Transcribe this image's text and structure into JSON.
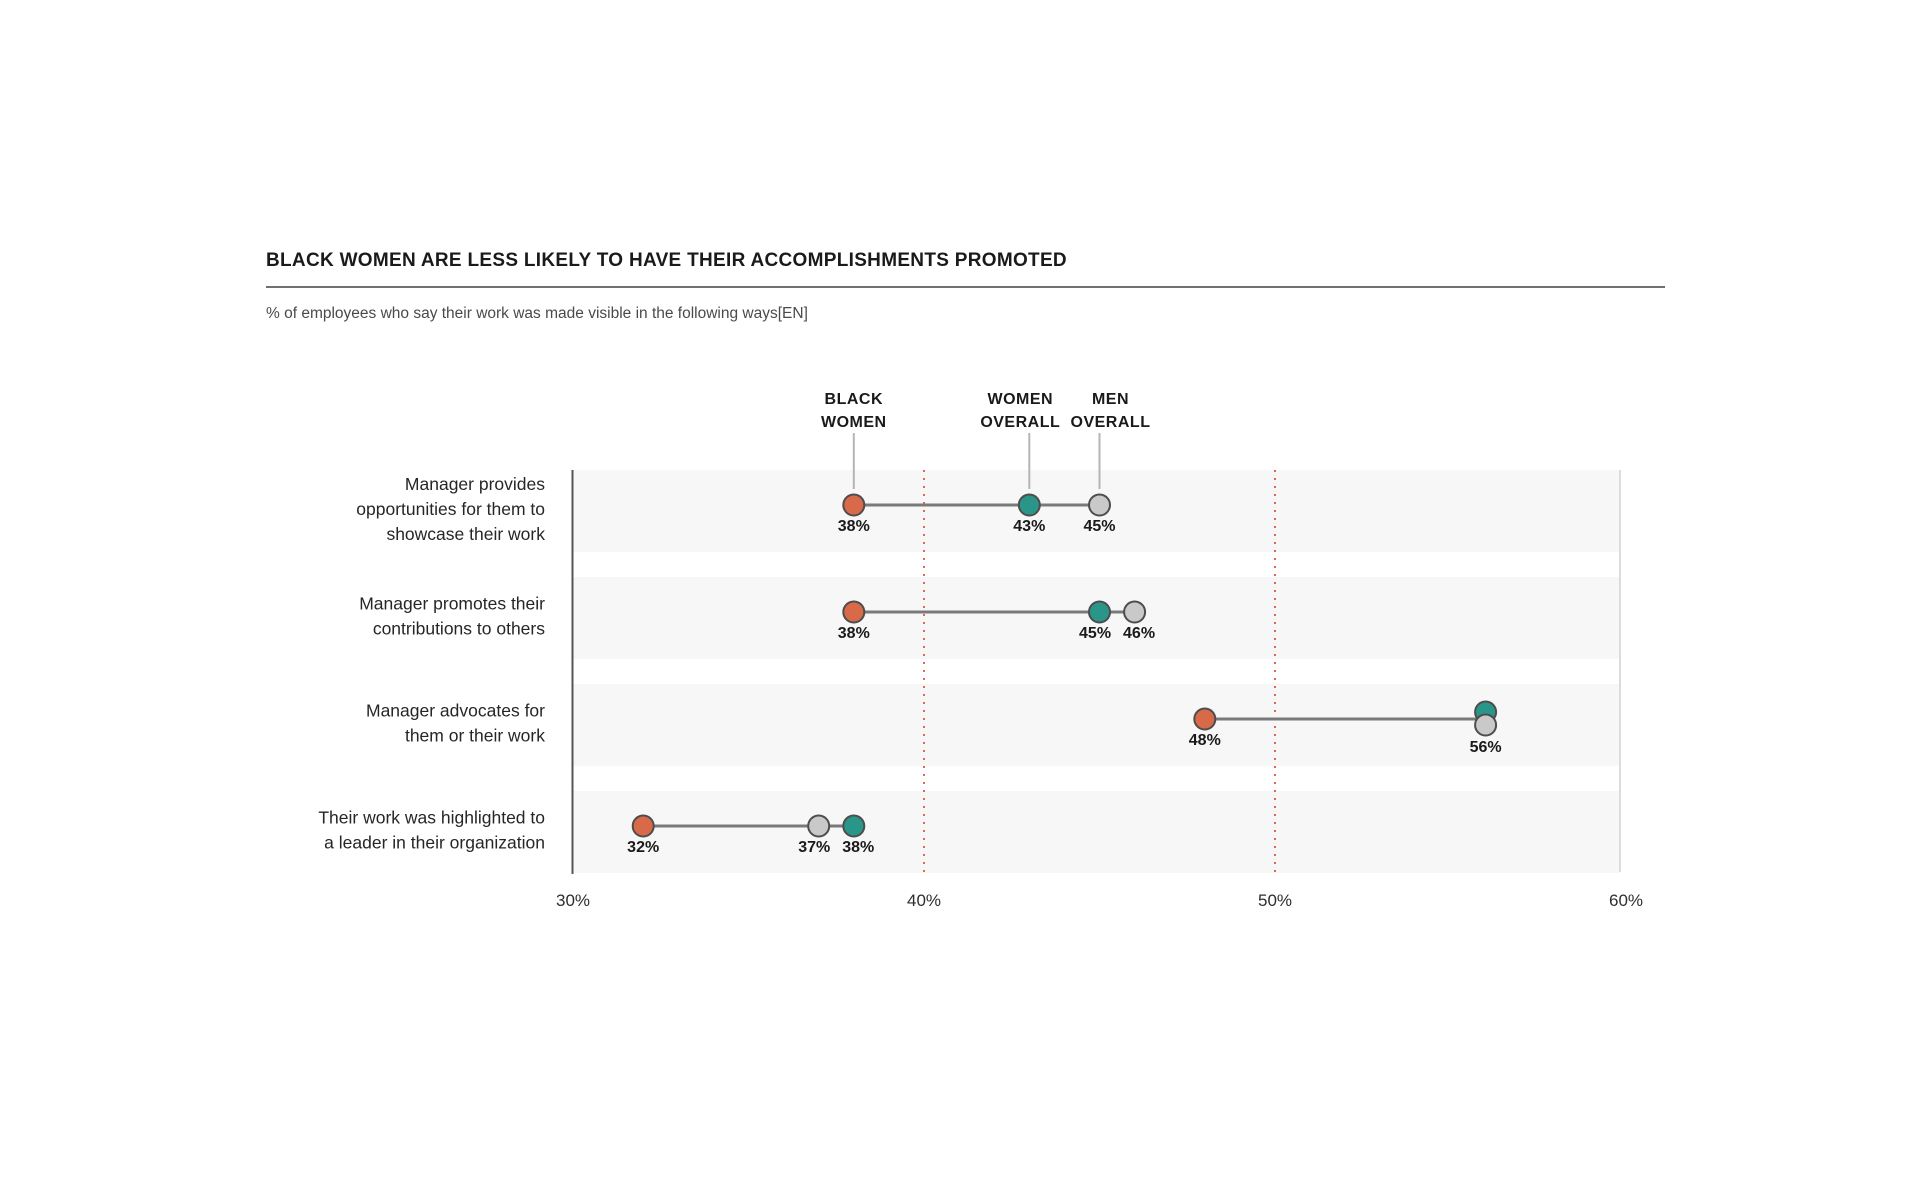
{
  "chart_data": {
    "type": "dumbbell",
    "title": "BLACK WOMEN ARE LESS LIKELY TO HAVE THEIR ACCOMPLISHMENTS PROMOTED",
    "subtitle": "% of employees who say their work was made visible in the following ways[EN]",
    "x_axis": {
      "min": 30,
      "max": 60,
      "tick_values": [
        30,
        40,
        50,
        60
      ],
      "tick_labels": [
        "30%",
        "40%",
        "50%",
        "60%"
      ],
      "unit": "%"
    },
    "gridlines": {
      "values": [
        40,
        50
      ],
      "style": "dotted",
      "color": "#e0694a"
    },
    "legend_position": "top",
    "categories": [
      "Manager provides opportunities for them to showcase their work",
      "Manager promotes their contributions to others",
      "Manager advocates for them or their work",
      "Their work was highlighted to a leader in their organization"
    ],
    "category_label_lines": [
      [
        "Manager provides",
        "opportunities for them to",
        "showcase their work"
      ],
      [
        "Manager promotes their",
        "contributions to others"
      ],
      [
        "Manager advocates for",
        "them or their work"
      ],
      [
        "Their work was highlighted to",
        "a leader in their organization"
      ]
    ],
    "series": [
      {
        "id": "black_women",
        "name": "BLACK WOMEN",
        "label_lines": [
          "BLACK",
          "WOMEN"
        ],
        "color": "#d96a49",
        "values": [
          38,
          38,
          48,
          32
        ]
      },
      {
        "id": "women_overall",
        "name": "WOMEN OVERALL",
        "label_lines": [
          "WOMEN",
          "OVERALL"
        ],
        "color": "#2a9689",
        "values": [
          43,
          45,
          56,
          38
        ]
      },
      {
        "id": "men_overall",
        "name": "MEN OVERALL",
        "label_lines": [
          "MEN",
          "OVERALL"
        ],
        "color": "#c9c9c9",
        "values": [
          45,
          46,
          56,
          37
        ]
      }
    ],
    "value_label_format": "{v}%",
    "colors": {
      "dot_stroke": "#4d4d4d",
      "connector": "#7a7a7a",
      "row_band": "#f7f7f7",
      "axis_line": "#555555",
      "right_edge": "#dcdcdc",
      "leader_line": "#b5b5b5",
      "value_label": "#1a1a1a",
      "row_label": "#262626",
      "tick_label": "#2e2e2e",
      "legend_label": "#1a1a1a"
    }
  }
}
